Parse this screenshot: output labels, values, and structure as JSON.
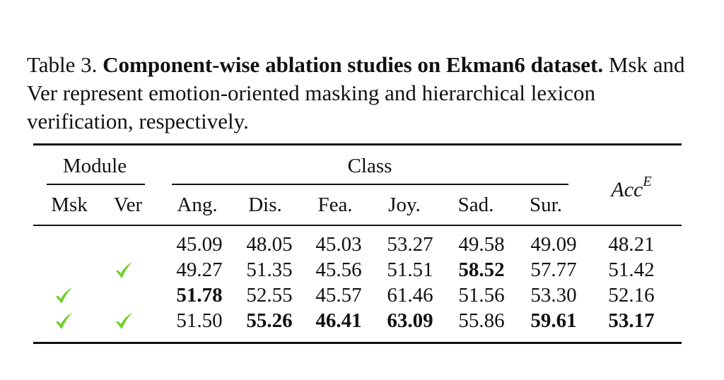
{
  "caption": {
    "label": "Table 3.",
    "bold_title": "Component-wise ablation studies on Ekman6 dataset.",
    "text": "Msk and Ver represent emotion-oriented masking and hierarchical lexicon verification, respectively."
  },
  "table": {
    "group_headers": {
      "module": "Module",
      "class": "Class"
    },
    "module_columns": [
      "Msk",
      "Ver"
    ],
    "class_columns": [
      "Ang.",
      "Dis.",
      "Fea.",
      "Joy.",
      "Sad.",
      "Sur."
    ],
    "metric_header": {
      "base": "Acc",
      "sup": "E"
    },
    "check_color": "#6fcf2a",
    "rows": [
      {
        "msk": false,
        "ver": false,
        "values": [
          "45.09",
          "48.05",
          "45.03",
          "53.27",
          "49.58",
          "49.09",
          "48.21"
        ],
        "bold": [
          false,
          false,
          false,
          false,
          false,
          false,
          false
        ]
      },
      {
        "msk": false,
        "ver": true,
        "values": [
          "49.27",
          "51.35",
          "45.56",
          "51.51",
          "58.52",
          "57.77",
          "51.42"
        ],
        "bold": [
          false,
          false,
          false,
          false,
          true,
          false,
          false
        ]
      },
      {
        "msk": true,
        "ver": false,
        "values": [
          "51.78",
          "52.55",
          "45.57",
          "61.46",
          "51.56",
          "53.30",
          "52.16"
        ],
        "bold": [
          true,
          false,
          false,
          false,
          false,
          false,
          false
        ]
      },
      {
        "msk": true,
        "ver": true,
        "values": [
          "51.50",
          "55.26",
          "46.41",
          "63.09",
          "55.86",
          "59.61",
          "53.17"
        ],
        "bold": [
          false,
          true,
          true,
          true,
          false,
          true,
          true
        ]
      }
    ]
  }
}
